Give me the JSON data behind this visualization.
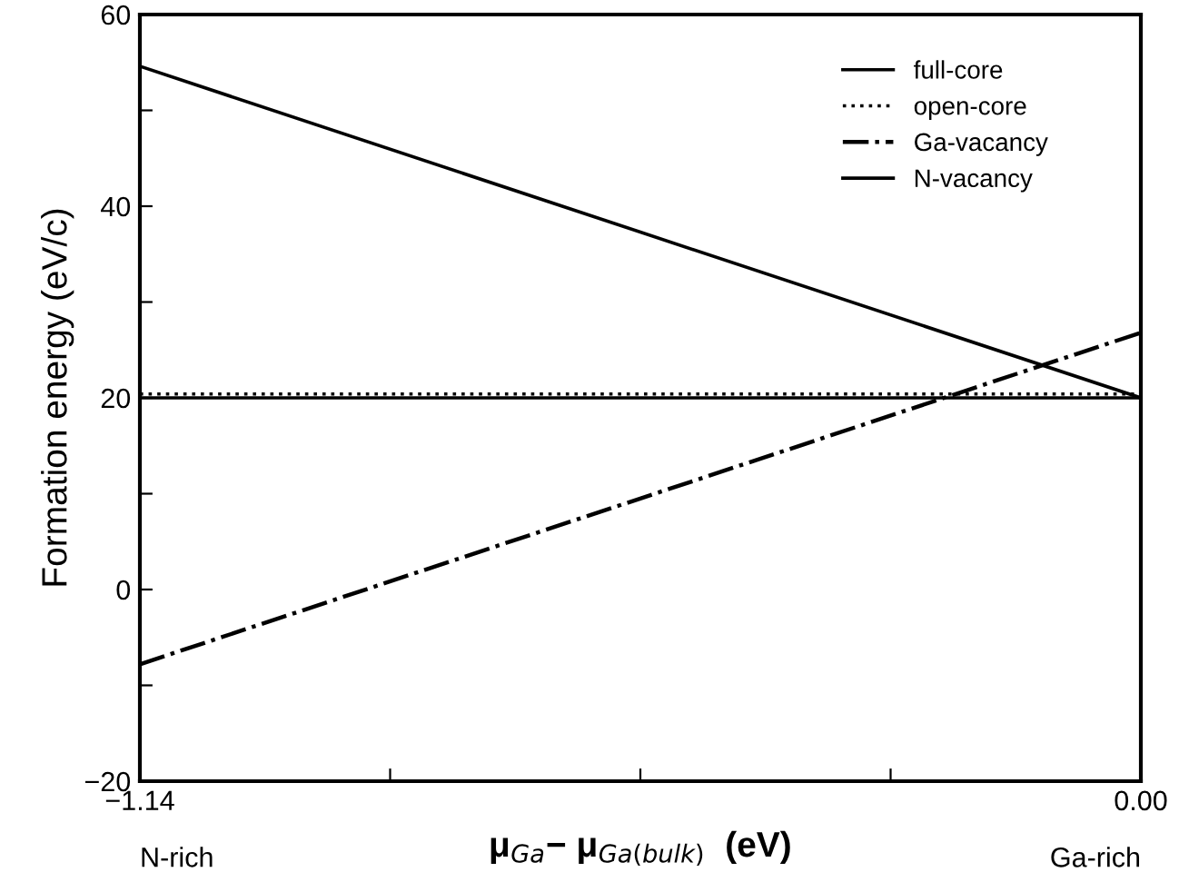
{
  "chart_data": {
    "type": "line",
    "xlabel": "μ$_{Ga}$− μ$_{Ga(bulk)}$  (eV)",
    "ylabel": "Formation energy (eV/c)",
    "xlim": [
      -1.14,
      0.0
    ],
    "ylim": [
      -20,
      60
    ],
    "xticks": [
      {
        "value": -1.14,
        "label": "−1.14"
      },
      {
        "value": -0.855,
        "label": null
      },
      {
        "value": -0.57,
        "label": null
      },
      {
        "value": -0.285,
        "label": null
      },
      {
        "value": 0.0,
        "label": "0.00"
      }
    ],
    "yticks": [
      {
        "value": -20,
        "label": "−20"
      },
      {
        "value": -10,
        "label": null
      },
      0,
      {
        "value": 10,
        "label": null
      },
      20,
      {
        "value": 30,
        "label": null
      },
      40,
      {
        "value": 50,
        "label": null
      },
      60
    ],
    "x": [
      -1.14,
      0.0
    ],
    "series": [
      {
        "name": "full-core",
        "color": "#000000",
        "values": [
          20.0,
          20.0
        ],
        "line_style": "solid"
      },
      {
        "name": "open-core",
        "color": "#000000",
        "values": [
          20.4,
          20.4
        ],
        "line_style": "dotted"
      },
      {
        "name": "Ga-vacancy",
        "color": "#000000",
        "values": [
          -7.8,
          26.8
        ],
        "line_style": "dashdot"
      },
      {
        "name": "N-vacancy",
        "color": "#000000",
        "values": [
          54.6,
          20.0
        ],
        "line_style": "solid"
      }
    ],
    "annotations": [
      "N-rich",
      "Ga-rich"
    ],
    "legend": "top right",
    "grid": false
  }
}
